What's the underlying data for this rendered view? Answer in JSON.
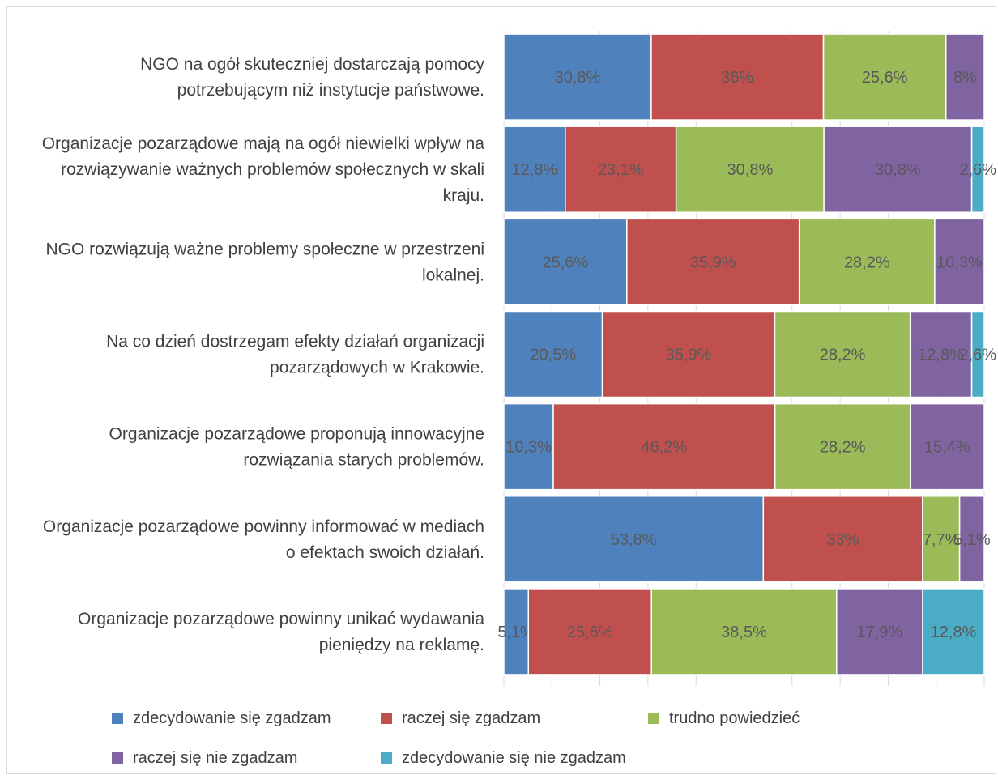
{
  "chart_data": {
    "type": "bar",
    "orientation": "horizontal",
    "stacked": true,
    "percent_stacked": true,
    "title": "",
    "xlabel": "",
    "ylabel": "",
    "xlim": [
      0,
      100
    ],
    "grid": true,
    "legend_position": "bottom",
    "categories": [
      [
        "NGO na ogół skuteczniej dostarczają pomocy",
        "potrzebującym niż instytucje państwowe."
      ],
      [
        "Organizacje pozarządowe mają na ogół niewielki wpływ na",
        "rozwiązywanie ważnych problemów społecznych w skali",
        "kraju."
      ],
      [
        "NGO rozwiązują ważne problemy społeczne w przestrzeni",
        "lokalnej."
      ],
      [
        "Na co dzień dostrzegam efekty działań organizacji",
        "pozarządowych w Krakowie."
      ],
      [
        "Organizacje pozarządowe proponują innowacyjne",
        "rozwiązania starych problemów."
      ],
      [
        "Organizacje pozarządowe powinny informować w mediach",
        "o efektach swoich działań."
      ],
      [
        "Organizacje pozarządowe powinny unikać wydawania",
        "pieniędzy na reklamę."
      ]
    ],
    "series": [
      {
        "name": "zdecydowanie się zgadzam",
        "color": "#4f81bd",
        "values": [
          30.8,
          12.8,
          25.6,
          20.5,
          10.3,
          53.8,
          5.1
        ],
        "labels": [
          "30,8%",
          "12,8%",
          "25,6%",
          "20,5%",
          "10,3%",
          "53,8%",
          "5,1%"
        ]
      },
      {
        "name": "raczej się zgadzam",
        "color": "#c0504d",
        "values": [
          36,
          23.1,
          35.9,
          35.9,
          46.2,
          33,
          25.6
        ],
        "labels": [
          "36%",
          "23,1%",
          "35,9%",
          "35,9%",
          "46,2%",
          "33%",
          "25,6%"
        ]
      },
      {
        "name": "trudno powiedzieć",
        "color": "#9bbb59",
        "values": [
          25.6,
          30.8,
          28.2,
          28.2,
          28.2,
          7.7,
          38.5
        ],
        "labels": [
          "25,6%",
          "30,8%",
          "28,2%",
          "28,2%",
          "28,2%",
          "7,7%",
          "38,5%"
        ]
      },
      {
        "name": "raczej się nie zgadzam",
        "color": "#8064a2",
        "values": [
          8,
          30.8,
          10.3,
          12.8,
          15.4,
          5.1,
          17.9
        ],
        "labels": [
          "8%",
          "30,8%",
          "10,3%",
          "12,8%",
          "15,4%",
          "5,1%",
          "17,9%"
        ]
      },
      {
        "name": "zdecydowanie się nie zgadzam",
        "color": "#4bacc6",
        "values": [
          0,
          2.6,
          0,
          2.6,
          0,
          0,
          12.8
        ],
        "labels": [
          "",
          "2,6%",
          "",
          "2,6%",
          "",
          "",
          "12,8%"
        ]
      }
    ]
  }
}
